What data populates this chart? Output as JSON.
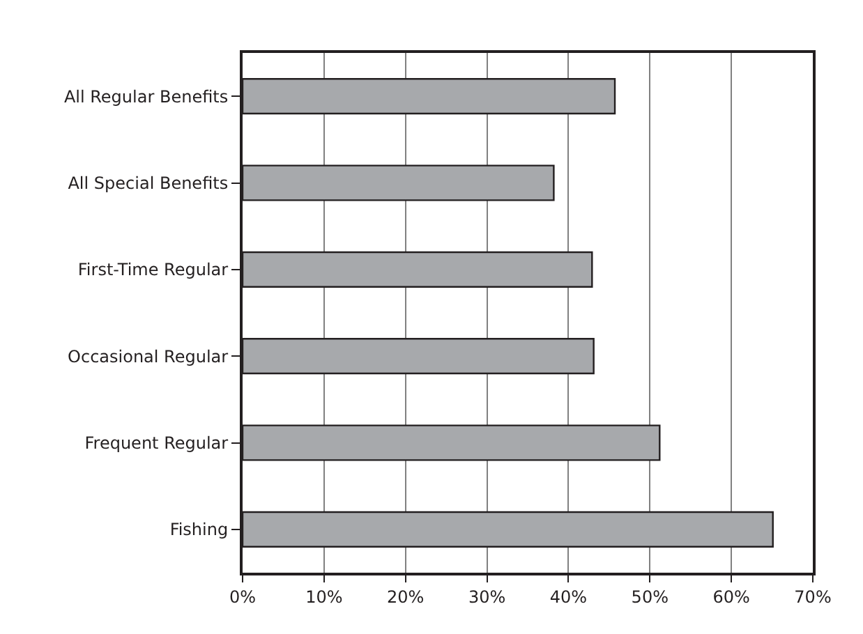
{
  "chart_data": {
    "type": "bar",
    "orientation": "horizontal",
    "categories": [
      "All Regular Benefits",
      "All Special Benefits",
      "First-Time Regular",
      "Occasional Regular",
      "Frequent Regular",
      "Fishing"
    ],
    "values": [
      45.7,
      38.2,
      42.9,
      43.1,
      51.2,
      65.1
    ],
    "color": "#a7a9ac",
    "xlim": [
      0,
      70
    ],
    "xticks": [
      {
        "value": 0,
        "label": "0%"
      },
      {
        "value": 10,
        "label": "10%"
      },
      {
        "value": 20,
        "label": "20%"
      },
      {
        "value": 30,
        "label": "30%"
      },
      {
        "value": 40,
        "label": "40%"
      },
      {
        "value": 50,
        "label": "50%"
      },
      {
        "value": 60,
        "label": "60%"
      },
      {
        "value": 70,
        "label": "70%"
      }
    ],
    "grid": "x"
  }
}
